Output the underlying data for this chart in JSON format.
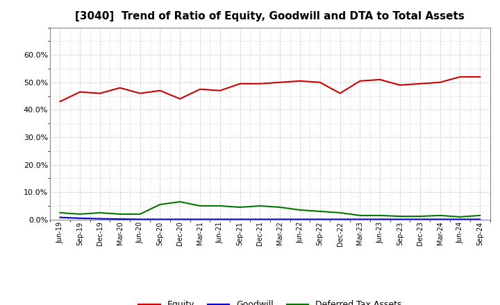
{
  "title": "[3040]  Trend of Ratio of Equity, Goodwill and DTA to Total Assets",
  "x_labels": [
    "Jun-19",
    "Sep-19",
    "Dec-19",
    "Mar-20",
    "Jun-20",
    "Sep-20",
    "Dec-20",
    "Mar-21",
    "Jun-21",
    "Sep-21",
    "Dec-21",
    "Mar-22",
    "Jun-22",
    "Sep-22",
    "Dec-22",
    "Mar-23",
    "Jun-23",
    "Sep-23",
    "Dec-23",
    "Mar-24",
    "Jun-24",
    "Sep-24"
  ],
  "equity": [
    43.0,
    46.5,
    46.0,
    48.0,
    46.0,
    47.0,
    44.0,
    47.5,
    47.0,
    49.5,
    49.5,
    50.0,
    50.5,
    50.0,
    46.0,
    50.5,
    51.0,
    49.0,
    49.5,
    50.0,
    52.0,
    52.0
  ],
  "goodwill": [
    0.8,
    0.5,
    0.3,
    0.2,
    0.1,
    0.1,
    0.1,
    0.1,
    0.1,
    0.1,
    0.1,
    0.1,
    0.1,
    0.1,
    0.1,
    0.1,
    0.1,
    0.1,
    0.1,
    0.1,
    0.1,
    0.1
  ],
  "dta": [
    2.5,
    2.0,
    2.5,
    2.0,
    2.0,
    5.5,
    6.5,
    5.0,
    5.0,
    4.5,
    5.0,
    4.5,
    3.5,
    3.0,
    2.5,
    1.5,
    1.5,
    1.2,
    1.2,
    1.5,
    1.0,
    1.5
  ],
  "equity_color": "#cc0000",
  "goodwill_color": "#0000cc",
  "dta_color": "#007700",
  "background_color": "#ffffff",
  "grid_color": "#b0b0b0",
  "ylim": [
    0,
    70
  ],
  "yticks": [
    0,
    10,
    20,
    30,
    40,
    50,
    60
  ],
  "title_fontsize": 11,
  "legend_labels": [
    "Equity",
    "Goodwill",
    "Deferred Tax Assets"
  ]
}
